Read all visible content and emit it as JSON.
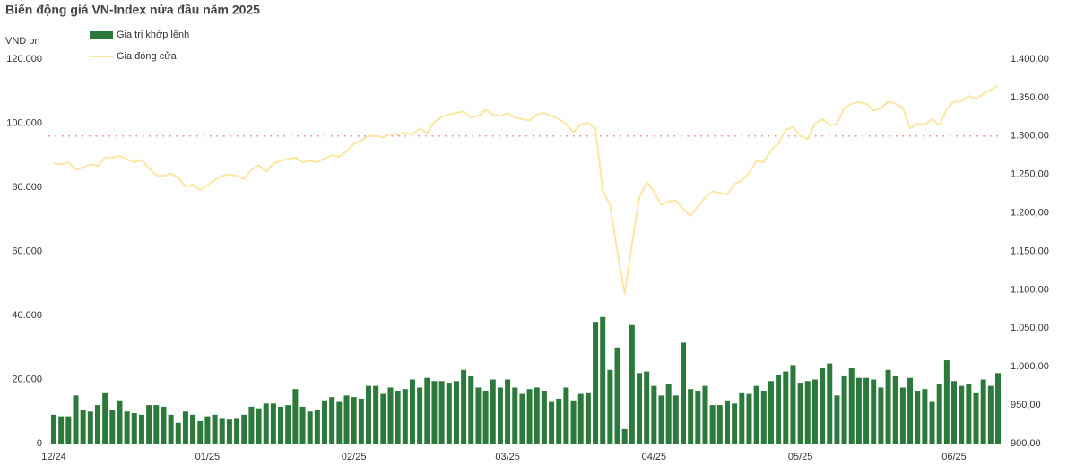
{
  "chart_data": {
    "type": "combo",
    "title": "Biến động giá VN-Index nửa đầu năm 2025",
    "y_label": "VND bn",
    "categories": [
      "12/24",
      null,
      null,
      null,
      null,
      null,
      null,
      null,
      null,
      null,
      null,
      null,
      null,
      null,
      null,
      null,
      null,
      null,
      null,
      null,
      null,
      "01/25",
      null,
      null,
      null,
      null,
      null,
      null,
      null,
      null,
      null,
      null,
      null,
      null,
      null,
      null,
      null,
      null,
      null,
      null,
      null,
      "02/25",
      null,
      null,
      null,
      null,
      null,
      null,
      null,
      null,
      null,
      null,
      null,
      null,
      null,
      null,
      null,
      null,
      null,
      null,
      null,
      null,
      "03/25",
      null,
      null,
      null,
      null,
      null,
      null,
      null,
      null,
      null,
      null,
      null,
      null,
      null,
      null,
      null,
      null,
      null,
      null,
      null,
      "04/25",
      null,
      null,
      null,
      null,
      null,
      null,
      null,
      null,
      null,
      null,
      null,
      null,
      null,
      null,
      null,
      null,
      null,
      null,
      null,
      "05/25",
      null,
      null,
      null,
      null,
      null,
      null,
      null,
      null,
      null,
      null,
      null,
      null,
      null,
      null,
      null,
      null,
      null,
      null,
      null,
      null,
      "06/25",
      null,
      null,
      null,
      null,
      null,
      null
    ],
    "series": [
      {
        "name": "Gia trị khớp lệnh",
        "type": "bar",
        "axis": "y",
        "color": "#2b7a3b",
        "values": [
          9000,
          8500,
          8500,
          15000,
          10500,
          10000,
          12000,
          16000,
          10500,
          13500,
          10000,
          9500,
          9000,
          12000,
          12000,
          11500,
          9000,
          6500,
          10000,
          9000,
          7000,
          8500,
          9000,
          8000,
          7500,
          8000,
          9000,
          11500,
          11000,
          12500,
          12500,
          11500,
          12000,
          17000,
          11500,
          10000,
          10500,
          13500,
          14500,
          13000,
          15000,
          14500,
          14000,
          18000,
          18000,
          15500,
          17500,
          16500,
          17000,
          20000,
          17500,
          20500,
          19500,
          19500,
          19000,
          19500,
          23000,
          21000,
          17500,
          16500,
          20000,
          17500,
          20000,
          17500,
          15500,
          17000,
          17500,
          16500,
          13000,
          14000,
          17500,
          13500,
          15500,
          16000,
          38000,
          39500,
          23000,
          30000,
          4500,
          37000,
          22000,
          22500,
          18000,
          15000,
          18500,
          15000,
          31500,
          17000,
          16500,
          18000,
          12000,
          12000,
          13500,
          12500,
          16000,
          15500,
          18000,
          16500,
          19500,
          21500,
          22500,
          24500,
          19000,
          19500,
          20000,
          23500,
          25000,
          15000,
          21000,
          23500,
          20500,
          20500,
          20000,
          17500,
          23000,
          21000,
          17500,
          20500,
          16500,
          17000,
          13000,
          18500,
          26000,
          19500,
          18000,
          18500,
          16000,
          20000,
          18000,
          22000
        ]
      },
      {
        "name": "Gia đóng cửa",
        "type": "line",
        "axis": "y2",
        "color": "#fce6a2",
        "values": [
          1265,
          1263,
          1266,
          1256,
          1259,
          1263,
          1261,
          1272,
          1272,
          1274,
          1270,
          1266,
          1269,
          1258,
          1249,
          1248,
          1251,
          1246,
          1234,
          1237,
          1230,
          1236,
          1243,
          1248,
          1250,
          1248,
          1244,
          1256,
          1262,
          1254,
          1264,
          1268,
          1270,
          1272,
          1266,
          1268,
          1266,
          1271,
          1275,
          1273,
          1280,
          1290,
          1294,
          1300,
          1300,
          1298,
          1303,
          1302,
          1304,
          1302,
          1310,
          1304,
          1318,
          1325,
          1328,
          1330,
          1332,
          1324,
          1326,
          1334,
          1328,
          1326,
          1330,
          1324,
          1322,
          1320,
          1328,
          1330,
          1326,
          1322,
          1316,
          1305,
          1315,
          1317,
          1310,
          1230,
          1210,
          1150,
          1095,
          1160,
          1220,
          1240,
          1228,
          1210,
          1215,
          1216,
          1205,
          1196,
          1208,
          1220,
          1228,
          1226,
          1224,
          1238,
          1242,
          1252,
          1268,
          1266,
          1282,
          1290,
          1308,
          1312,
          1300,
          1296,
          1316,
          1322,
          1314,
          1316,
          1336,
          1342,
          1344,
          1342,
          1333,
          1336,
          1345,
          1342,
          1337,
          1310,
          1316,
          1315,
          1322,
          1314,
          1335,
          1345,
          1345,
          1352,
          1348,
          1355,
          1360,
          1366
        ]
      }
    ],
    "reference_line": {
      "value": 1300,
      "axis": "y2",
      "color": "#e05a5a"
    },
    "ylim": [
      0,
      120000
    ],
    "yticks": [
      0,
      {
        "value": 20000,
        "label": "20.000"
      },
      {
        "value": 40000,
        "label": "40.000"
      },
      {
        "value": 60000,
        "label": "60.000"
      },
      {
        "value": 80000,
        "label": "80.000"
      },
      {
        "value": 100000,
        "label": "100.000"
      },
      {
        "value": 120000,
        "label": "120.000"
      }
    ],
    "y2lim": [
      900,
      1400
    ],
    "y2ticks": [
      {
        "value": 900,
        "label": "900,00"
      },
      {
        "value": 950,
        "label": "950,00"
      },
      {
        "value": 1000,
        "label": "1.000,00"
      },
      {
        "value": 1050,
        "label": "1.050,00"
      },
      {
        "value": 1100,
        "label": "1.100,00"
      },
      {
        "value": 1150,
        "label": "1.150,00"
      },
      {
        "value": 1200,
        "label": "1.200,00"
      },
      {
        "value": 1250,
        "label": "1.250,00"
      },
      {
        "value": 1300,
        "label": "1.300,00"
      },
      {
        "value": 1350,
        "label": "1.350,00"
      },
      {
        "value": 1400,
        "label": "1.400,00"
      }
    ]
  }
}
